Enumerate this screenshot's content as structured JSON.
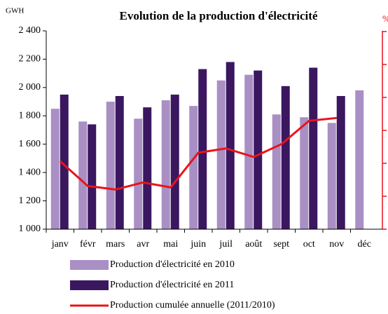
{
  "chart_data": {
    "type": "bar",
    "title": "Evolution de la production d'électricité",
    "y_label": "GWH",
    "y2_label": "%",
    "categories": [
      "janv",
      "févr",
      "mars",
      "avr",
      "mai",
      "juin",
      "juil",
      "août",
      "sept",
      "oct",
      "nov",
      "déc"
    ],
    "series": [
      {
        "name": "Production d'électricité en 2010",
        "color": "#a98fc4",
        "values": [
          1850,
          1760,
          1900,
          1780,
          1910,
          1870,
          2050,
          2090,
          1810,
          1790,
          1750,
          1980
        ]
      },
      {
        "name": "Production d'électricité en 2011",
        "color": "#3b1760",
        "values": [
          1950,
          1740,
          1940,
          1860,
          1950,
          2130,
          2180,
          2120,
          2010,
          2140,
          1940,
          null
        ]
      },
      {
        "name": "Production cumulée annuelle (2011/2010)",
        "color": "#e8141b",
        "type": "line",
        "values": [
          1480,
          1305,
          1280,
          1330,
          1295,
          1540,
          1570,
          1510,
          1600,
          1765,
          1785,
          null
        ]
      }
    ],
    "ylim": [
      1000,
      2400
    ],
    "yticks": [
      {
        "value": 1000,
        "label": "1 000"
      },
      {
        "value": 1200,
        "label": "1 200"
      },
      {
        "value": 1400,
        "label": "1 400"
      },
      {
        "value": 1600,
        "label": "1 600"
      },
      {
        "value": 1800,
        "label": "1 800"
      },
      {
        "value": 2000,
        "label": "2 000"
      },
      {
        "value": 2200,
        "label": "2 200"
      },
      {
        "value": 2400,
        "label": "2 400"
      }
    ]
  }
}
